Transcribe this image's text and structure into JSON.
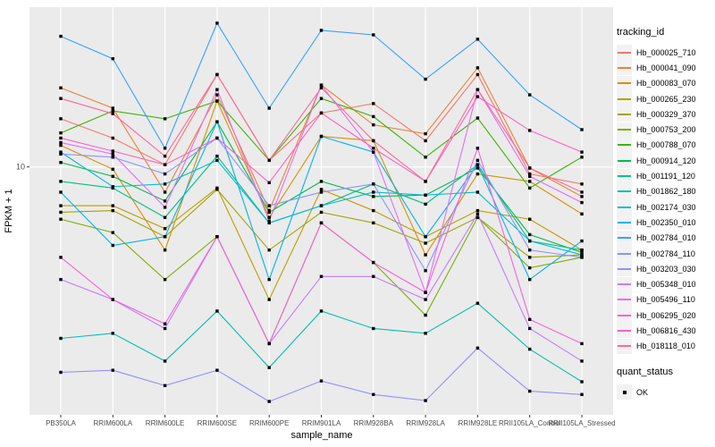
{
  "chart": {
    "x_axis_title": "sample_name",
    "y_axis_title": "FPKM + 1"
  },
  "legend": {
    "tracking_title": "tracking_id",
    "quant_title": "quant_status",
    "quant_items": [
      {
        "label": "OK",
        "shape": "filled-square",
        "color": "#000000"
      }
    ]
  },
  "chart_data": {
    "type": "line",
    "title": "",
    "xlabel": "sample_name",
    "ylabel": "FPKM + 1",
    "y_scale": "log10",
    "y_ticks": [
      10
    ],
    "ylim": [
      1.12,
      41
    ],
    "grid": "major",
    "panel_bg": "#EBEBEB",
    "grid_color": "#FFFFFF",
    "point_shape": "filled-square",
    "point_color": "#000000",
    "legend_position": "right",
    "legend_title": "tracking_id",
    "quant_status": {
      "title": "quant_status",
      "items": [
        "OK"
      ]
    },
    "categories": [
      "PB350LA",
      "RRIM600LA",
      "RRIM600LE",
      "RRIM600SE",
      "RRIM600PE",
      "RRIM901LA",
      "RRIM928BA",
      "RRIM928LA",
      "RRIM928LE",
      "RRII105LA_Control",
      "RRII105LA_Stressed"
    ],
    "series": [
      {
        "name": "Hb_000025_710",
        "color": "#F8766D",
        "values": [
          15.3,
          12.9,
          10.2,
          22.6,
          10.6,
          16.1,
          17.5,
          12.6,
          22.6,
          9.4,
          8.6
        ]
      },
      {
        "name": "Hb_000041_090",
        "color": "#EA8331",
        "values": [
          20.1,
          16.8,
          8.0,
          18.9,
          6.8,
          20.6,
          14.5,
          13.4,
          24.0,
          9.9,
          7.7
        ]
      },
      {
        "name": "Hb_000083_070",
        "color": "#D89000",
        "values": [
          12.1,
          9.8,
          4.8,
          17.9,
          6.4,
          13.1,
          12.6,
          4.6,
          9.4,
          8.8,
          6.6
        ]
      },
      {
        "name": "Hb_000265_230",
        "color": "#C09B00",
        "values": [
          7.1,
          7.1,
          5.8,
          8.3,
          3.1,
          8.2,
          6.8,
          5.4,
          6.8,
          6.3,
          4.8
        ]
      },
      {
        "name": "Hb_000329_370",
        "color": "#A3A500",
        "values": [
          6.7,
          6.8,
          5.4,
          8.2,
          4.8,
          6.7,
          6.1,
          5.1,
          6.4,
          4.5,
          4.6
        ]
      },
      {
        "name": "Hb_000753_200",
        "color": "#7CAE00",
        "values": [
          6.3,
          5.6,
          3.7,
          5.4,
          2.1,
          6.1,
          4.3,
          2.7,
          6.4,
          4.1,
          4.5
        ]
      },
      {
        "name": "Hb_000788_070",
        "color": "#39B600",
        "values": [
          13.5,
          16.4,
          15.3,
          17.9,
          10.6,
          18.3,
          15.6,
          10.9,
          15.4,
          8.3,
          10.9
        ]
      },
      {
        "name": "Hb_000914_120",
        "color": "#00BB4E",
        "values": [
          10.4,
          9.2,
          7.4,
          14.9,
          6.7,
          8.8,
          7.7,
          7.8,
          9.9,
          5.5,
          4.7
        ]
      },
      {
        "name": "Hb_001191_120",
        "color": "#00C087",
        "values": [
          8.8,
          8.3,
          6.4,
          11.0,
          6.1,
          7.1,
          8.6,
          7.2,
          10.2,
          5.2,
          4.8
        ]
      },
      {
        "name": "Hb_001862_180",
        "color": "#00C0B2",
        "values": [
          2.2,
          2.3,
          1.8,
          2.8,
          1.7,
          2.8,
          2.4,
          2.3,
          3.0,
          2.0,
          1.5
        ]
      },
      {
        "name": "Hb_002174_030",
        "color": "#00BCD8",
        "values": [
          11.4,
          8.4,
          8.6,
          10.6,
          6.1,
          7.1,
          8.0,
          7.8,
          8.0,
          5.2,
          4.6
        ]
      },
      {
        "name": "Hb_002350_010",
        "color": "#00B3F2",
        "values": [
          8.0,
          5.0,
          5.4,
          14.9,
          3.7,
          13.1,
          11.4,
          5.4,
          10.2,
          3.7,
          5.2
        ]
      },
      {
        "name": "Hb_002784_010",
        "color": "#35A2FF",
        "values": [
          31.7,
          26.0,
          11.8,
          35.6,
          16.8,
          33.4,
          32.1,
          21.7,
          30.9,
          18.9,
          13.9
        ]
      },
      {
        "name": "Hb_002784_110",
        "color": "#8B93FF",
        "values": [
          11.2,
          10.9,
          9.4,
          12.9,
          7.1,
          8.0,
          8.6,
          4.0,
          10.6,
          4.8,
          4.5
        ]
      },
      {
        "name": "Hb_003203_030",
        "color": "#9590FF",
        "values": [
          1.63,
          1.66,
          1.45,
          1.66,
          1.26,
          1.51,
          1.34,
          1.27,
          2.02,
          1.38,
          1.34
        ]
      },
      {
        "name": "Hb_005348_010",
        "color": "#C57BFF",
        "values": [
          3.7,
          3.1,
          2.4,
          5.4,
          2.1,
          3.8,
          3.8,
          3.1,
          6.6,
          2.4,
          1.8
        ]
      },
      {
        "name": "Hb_005496_110",
        "color": "#E36EF6",
        "values": [
          12.4,
          11.2,
          7.0,
          19.8,
          6.2,
          20.6,
          11.4,
          3.3,
          19.8,
          9.2,
          7.3
        ]
      },
      {
        "name": "Hb_006295_020",
        "color": "#F562DE",
        "values": [
          4.5,
          3.1,
          2.5,
          5.4,
          2.1,
          6.1,
          4.3,
          3.3,
          11.8,
          2.6,
          2.1
        ]
      },
      {
        "name": "Hb_006816_430",
        "color": "#FF61C7",
        "values": [
          12.9,
          11.5,
          10.2,
          12.9,
          8.7,
          16.1,
          11.8,
          8.8,
          18.6,
          13.8,
          11.4
        ]
      },
      {
        "name": "Hb_018118_010",
        "color": "#FF689E",
        "values": [
          18.3,
          16.0,
          11.0,
          22.6,
          10.6,
          20.1,
          12.6,
          8.8,
          19.8,
          9.9,
          8.0
        ]
      }
    ]
  }
}
